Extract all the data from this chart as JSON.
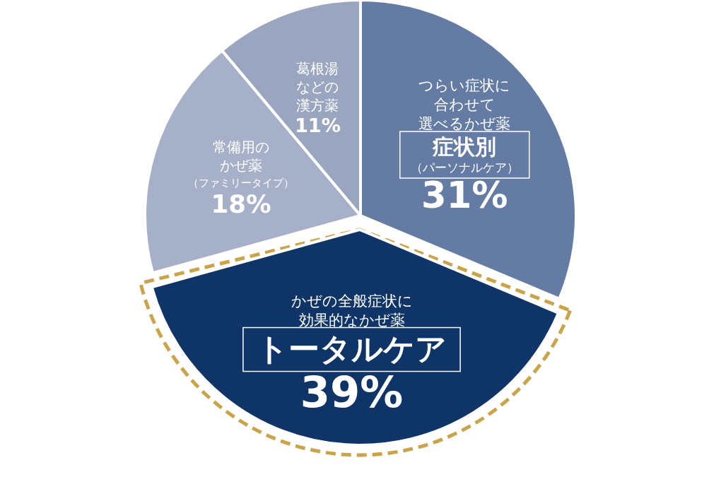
{
  "chart_data": {
    "type": "pie",
    "categories": [
      "症状別（パーソナルケア）",
      "トータルケア",
      "常備用のかぜ薬（ファミリータイプ）",
      "葛根湯などの漢方薬"
    ],
    "values": [
      31,
      39,
      18,
      11
    ],
    "value_labels": [
      "31%",
      "39%",
      "18%",
      "11%"
    ],
    "colors": [
      "#647ba3",
      "#0f3468",
      "#a6b1c9",
      "#9aa6c0"
    ],
    "annotations": [
      "つらい症状に合わせて選べるかぜ薬",
      "かぜの全般症状に効果的なかぜ薬"
    ]
  }
}
